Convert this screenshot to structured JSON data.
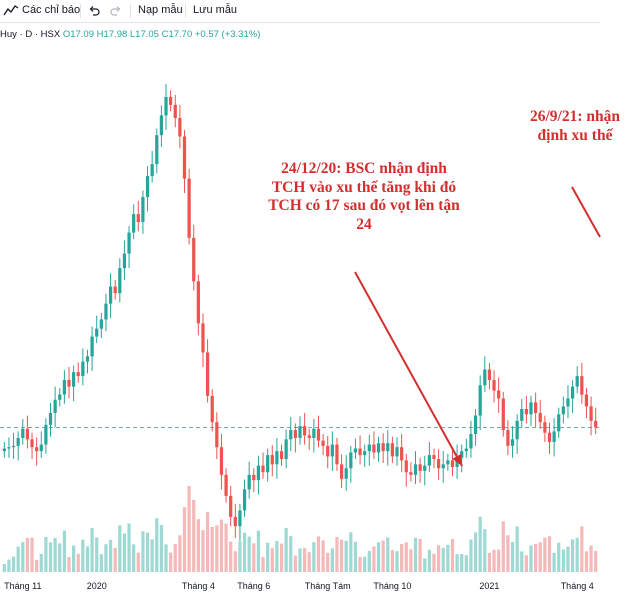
{
  "toolbar": {
    "indicators_label": "Các chỉ báo",
    "undo_icon": "undo-icon",
    "redo_icon": "redo-icon",
    "load_template_label": "Nạp mẫu",
    "save_template_label": "Lưu mẫu"
  },
  "legend": {
    "symbol": "Huy · D · HSX",
    "ohlc": "O17.09 H17.98 L17.05 C17.70 +0.57 (+3.31%)"
  },
  "annotations": [
    "24/12/20: BSC nhận định TCH vào xu thế tăng khi đó TCH có 17 sau đó vọt lên tận 24",
    "26/9/21: nhận định xu thế"
  ],
  "colors": {
    "up": "#26a69a",
    "down": "#ef5350",
    "annotation": "#d32f2f",
    "baseline": "#6fa8c6"
  },
  "chart_data": {
    "type": "candlestick",
    "x_ticks": [
      "Tháng 11",
      "2020",
      "Tháng 4",
      "Tháng 6",
      "Tháng Tám",
      "Tháng 10",
      "2021",
      "Tháng 4"
    ],
    "series": [
      {
        "values": [
          17.1,
          17.2,
          17.3,
          17.9,
          18.6,
          17.8,
          17.2,
          16.9,
          17.4,
          18.9,
          19.8,
          20.8,
          21.2,
          22.3,
          21.8,
          22.9,
          22.6,
          23.7,
          24.1,
          25.6,
          26.2,
          26.9,
          28.1,
          29.4,
          28.9,
          30.8,
          31.9,
          33.5,
          34.9,
          34.3,
          36.2,
          37.8,
          38.7,
          40.9,
          42.4,
          43.8,
          43.2,
          42.2,
          40.8,
          37.6,
          33.1,
          29.8,
          26.6,
          24.4,
          21.1,
          19.1,
          17.2,
          15.1,
          13.5,
          11.9,
          11.2,
          12.4,
          14.0,
          15.1,
          14.7,
          15.8,
          15.3,
          16.6,
          15.9,
          16.9,
          16.3,
          17.8,
          18.5,
          17.9,
          18.8,
          18.1,
          17.9,
          18.6,
          17.7,
          17.3,
          16.5,
          17.4,
          15.9,
          14.8,
          15.6,
          16.8,
          17.1,
          16.6,
          16.9,
          17.4,
          16.8,
          17.5,
          16.9,
          17.5,
          16.5,
          17.2,
          16.2,
          15.3,
          15.1,
          15.9,
          15.4,
          15.8,
          16.6,
          16.3,
          15.6,
          15.9,
          16.2,
          15.7,
          16.4,
          16.9,
          17.1,
          18.2,
          19.6,
          21.9,
          23.1,
          22.3,
          21.5,
          20.9,
          18.5,
          17.3,
          17.8,
          19.2,
          20.1,
          19.7,
          20.6,
          19.8,
          19.1,
          18.3,
          17.6,
          18.4,
          19.7,
          20.3,
          20.9,
          21.8,
          22.6,
          21.2,
          20.3,
          19.2,
          18.7
        ]
      }
    ],
    "ylim": [
      10,
      46
    ],
    "grid": false
  }
}
